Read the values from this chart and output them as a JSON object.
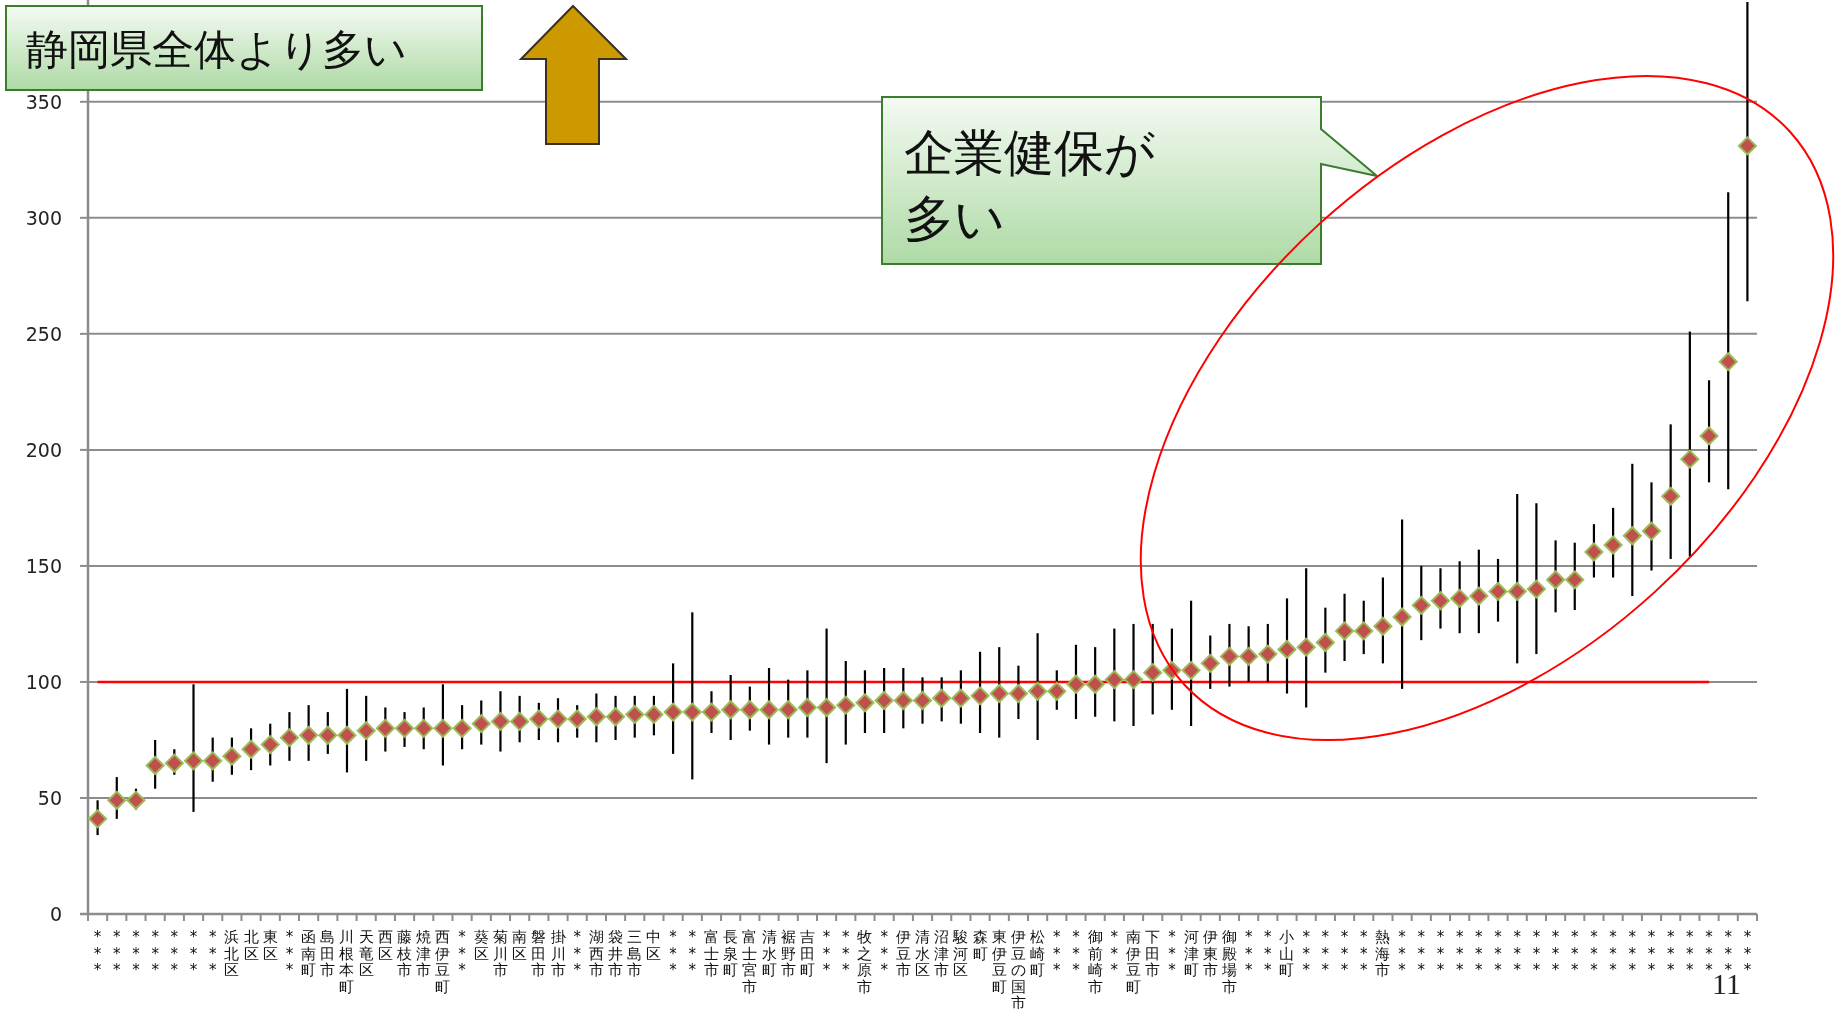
{
  "chart_data": {
    "type": "scatter",
    "categories": [
      "***",
      "***",
      "***",
      "***",
      "***",
      "***",
      "***",
      "浜北区",
      "北区",
      "東区",
      "***",
      "函南町",
      "島田市",
      "川根本町",
      "天竜区",
      "西区",
      "藤枝市",
      "焼津市",
      "西伊豆町",
      "***",
      "葵区",
      "菊川市",
      "南区",
      "磐田市",
      "掛川市",
      "***",
      "湖西市",
      "袋井市",
      "三島市",
      "中区",
      "***",
      "***",
      "富士市",
      "長泉町",
      "富士宮市",
      "清水町",
      "裾野市",
      "吉田町",
      "***",
      "***",
      "牧之原市",
      "***",
      "伊豆市",
      "清水区",
      "沼津市",
      "駿河区",
      "森町",
      "東伊豆町",
      "伊豆の国市",
      "松崎町",
      "***",
      "***",
      "御前崎市",
      "***",
      "南伊豆町",
      "下田市",
      "***",
      "河津町",
      "伊東市",
      "御殿場市",
      "***",
      "***",
      "小山町",
      "***",
      "***",
      "***",
      "***",
      "熱海市",
      "***",
      "***",
      "***",
      "***",
      "***",
      "***",
      "***",
      "***",
      "***",
      "***",
      "***",
      "***",
      "***",
      "***",
      "***",
      "***",
      "***",
      "***",
      "***"
    ],
    "series": [
      {
        "color": "#c0504d",
        "values": [
          41,
          49,
          49,
          64,
          65,
          66,
          66,
          68,
          71,
          73,
          76,
          77,
          77,
          77,
          79,
          80,
          80,
          80,
          80,
          80,
          82,
          83,
          83,
          84,
          84,
          84,
          85,
          85,
          86,
          86,
          87,
          87,
          87,
          88,
          88,
          88,
          88,
          89,
          89,
          90,
          91,
          92,
          92,
          92,
          93,
          93,
          94,
          95,
          95,
          96,
          96,
          99,
          99,
          101,
          101,
          104,
          105,
          105,
          108,
          111,
          111,
          112,
          114,
          115,
          117,
          122,
          122,
          124,
          128,
          133,
          135,
          136,
          137,
          139,
          139,
          140,
          144,
          144,
          156,
          159,
          163,
          165,
          180,
          196,
          206,
          238,
          331
        ],
        "errors": [
          [
            34,
            49
          ],
          [
            41,
            59
          ],
          [
            45,
            54
          ],
          [
            54,
            75
          ],
          [
            60,
            71
          ],
          [
            44,
            99
          ],
          [
            57,
            76
          ],
          [
            60,
            76
          ],
          [
            62,
            80
          ],
          [
            64,
            82
          ],
          [
            66,
            87
          ],
          [
            66,
            90
          ],
          [
            69,
            87
          ],
          [
            61,
            97
          ],
          [
            66,
            94
          ],
          [
            70,
            89
          ],
          [
            72,
            87
          ],
          [
            71,
            89
          ],
          [
            64,
            99
          ],
          [
            71,
            90
          ],
          [
            73,
            92
          ],
          [
            70,
            96
          ],
          [
            74,
            94
          ],
          [
            75,
            91
          ],
          [
            74,
            93
          ],
          [
            76,
            90
          ],
          [
            74,
            95
          ],
          [
            75,
            94
          ],
          [
            76,
            94
          ],
          [
            77,
            94
          ],
          [
            69,
            108
          ],
          [
            58,
            130
          ],
          [
            78,
            96
          ],
          [
            75,
            103
          ],
          [
            79,
            98
          ],
          [
            73,
            106
          ],
          [
            76,
            101
          ],
          [
            76,
            105
          ],
          [
            65,
            123
          ],
          [
            73,
            109
          ],
          [
            78,
            105
          ],
          [
            78,
            106
          ],
          [
            80,
            106
          ],
          [
            82,
            102
          ],
          [
            83,
            102
          ],
          [
            82,
            105
          ],
          [
            78,
            113
          ],
          [
            76,
            115
          ],
          [
            84,
            107
          ],
          [
            75,
            121
          ],
          [
            88,
            105
          ],
          [
            84,
            116
          ],
          [
            85,
            115
          ],
          [
            83,
            123
          ],
          [
            81,
            125
          ],
          [
            86,
            125
          ],
          [
            88,
            123
          ],
          [
            81,
            135
          ],
          [
            97,
            120
          ],
          [
            98,
            125
          ],
          [
            100,
            124
          ],
          [
            100,
            125
          ],
          [
            95,
            136
          ],
          [
            89,
            149
          ],
          [
            104,
            132
          ],
          [
            109,
            138
          ],
          [
            112,
            135
          ],
          [
            108,
            145
          ],
          [
            97,
            170
          ],
          [
            118,
            150
          ],
          [
            123,
            149
          ],
          [
            121,
            152
          ],
          [
            121,
            157
          ],
          [
            126,
            153
          ],
          [
            108,
            181
          ],
          [
            112,
            177
          ],
          [
            130,
            161
          ],
          [
            131,
            160
          ],
          [
            145,
            168
          ],
          [
            145,
            175
          ],
          [
            137,
            194
          ],
          [
            148,
            186
          ],
          [
            153,
            211
          ],
          [
            154,
            251
          ],
          [
            186,
            230
          ],
          [
            183,
            311
          ],
          [
            264,
            393
          ]
        ]
      }
    ],
    "ylim": [
      0,
      393
    ],
    "yticks": [
      0,
      50,
      100,
      150,
      200,
      250,
      300,
      350
    ],
    "grid": "y",
    "marker": "diamond",
    "ref_lines": [
      {
        "axis": "y",
        "value": 100,
        "color": "#ff0000"
      }
    ],
    "annotations": [
      "静岡県全体より多い",
      "企業健保が多い",
      "11"
    ]
  }
}
